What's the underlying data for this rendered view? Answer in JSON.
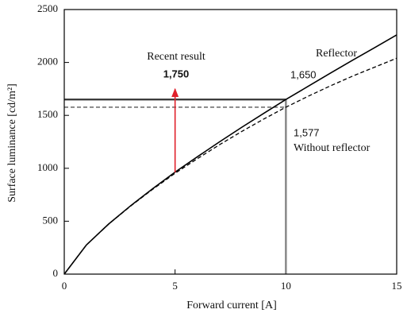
{
  "chart_data": {
    "type": "line",
    "xlabel": "Forward current [A]",
    "ylabel": "Surface luminance [cd/m²]",
    "x": [
      0,
      1,
      2,
      3,
      4,
      5,
      6,
      7,
      8,
      9,
      10,
      11,
      12,
      13,
      14,
      15
    ],
    "series": [
      {
        "name": "Reflector",
        "color": "#000000",
        "dash": false,
        "values": [
          0,
          276,
          473,
          647,
          809,
          964,
          1108,
          1249,
          1386,
          1519,
          1650,
          1774,
          1898,
          2020,
          2139,
          2260
        ]
      },
      {
        "name": "Without reflector",
        "color": "#000000",
        "dash": true,
        "values": [
          0,
          276,
          472,
          644,
          803,
          953,
          1090,
          1222,
          1347,
          1465,
          1577,
          1680,
          1778,
          1870,
          1955,
          2040
        ]
      }
    ],
    "xlim": [
      0,
      15
    ],
    "xticks": [
      0,
      5,
      10,
      15
    ],
    "ylim": [
      0,
      2500
    ],
    "yticks": [
      0,
      500,
      1000,
      1500,
      2000,
      2500
    ],
    "highlights": [
      {
        "x": 10,
        "value": 1650,
        "label": "1,650",
        "dash": false,
        "color": "#333333"
      },
      {
        "x": 10,
        "value": 1577,
        "label": "1,577",
        "dash": true,
        "color": "#333333"
      }
    ],
    "arrow": {
      "x": 5,
      "from": 960,
      "to": 1750,
      "label": "1,750",
      "title": "Recent result",
      "color": "#e0202a"
    }
  }
}
